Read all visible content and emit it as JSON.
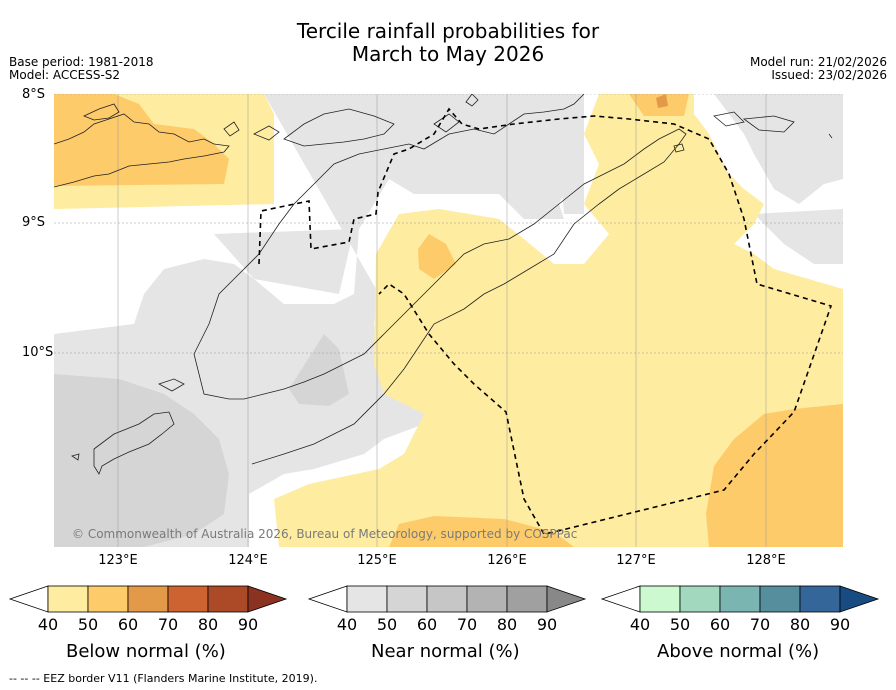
{
  "title_line1": "Tercile rainfall probabilities for",
  "title_line2": "March to May 2026",
  "base_period": "Base period: 1981-2018",
  "model": "Model: ACCESS-S2",
  "model_run": "Model run: 21/02/2026",
  "issued": "Issued: 23/02/2026",
  "lat_labels": [
    "8°S",
    "9°S",
    "10°S"
  ],
  "lon_labels": [
    "123°E",
    "124°E",
    "125°E",
    "126°E",
    "127°E",
    "128°E"
  ],
  "copyright": "© Commonwealth of Australia 2026, Bureau of Meteorology, supported by COSPPac",
  "colorbars": {
    "below": {
      "label": "Below normal (%)",
      "ticks": [
        "40",
        "50",
        "60",
        "70",
        "80",
        "90"
      ],
      "colors": [
        "#ffffff",
        "#feeca0",
        "#fdcb6a",
        "#e39a48",
        "#cd6331",
        "#ac4a28",
        "#8c3220"
      ]
    },
    "near": {
      "label": "Near normal (%)",
      "ticks": [
        "40",
        "50",
        "60",
        "70",
        "80",
        "90"
      ],
      "colors": [
        "#ffffff",
        "#e5e5e5",
        "#d5d5d5",
        "#c6c6c6",
        "#b3b3b3",
        "#a0a0a0",
        "#888888"
      ]
    },
    "above": {
      "label": "Above normal (%)",
      "ticks": [
        "40",
        "50",
        "60",
        "70",
        "80",
        "90"
      ],
      "colors": [
        "#ffffff",
        "#ccf9cf",
        "#a2d9be",
        "#7bb5b1",
        "#568e9e",
        "#34669a",
        "#184b82"
      ]
    }
  },
  "footer": "--  --  -- EEZ border V11 (Flanders Marine Institute, 2019)."
}
